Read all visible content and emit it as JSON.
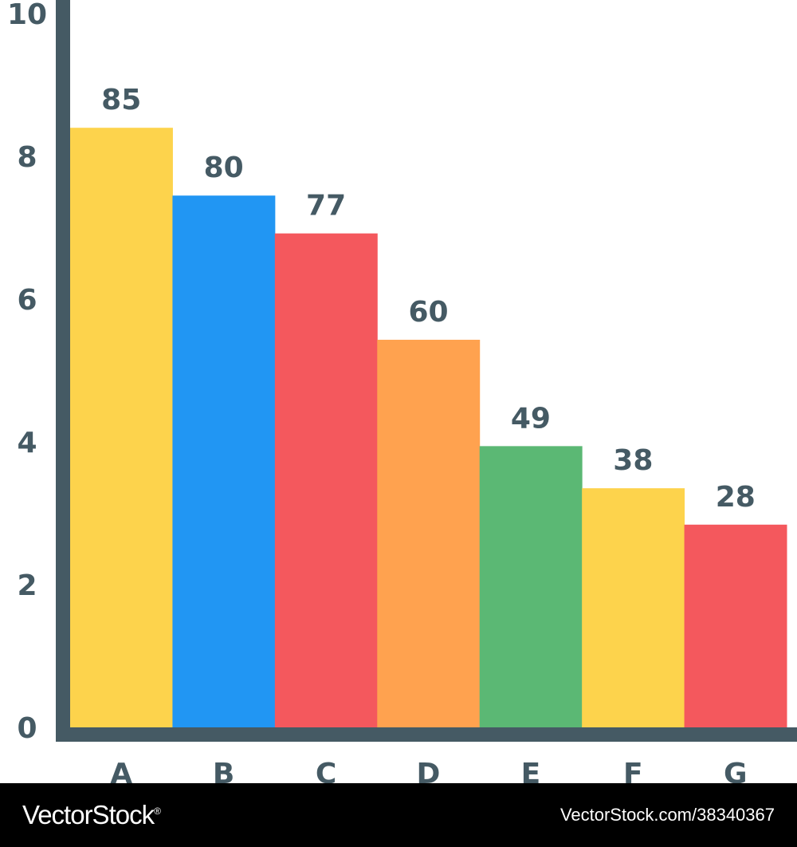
{
  "chart_data": {
    "type": "bar",
    "categories": [
      "A",
      "B",
      "C",
      "D",
      "E",
      "F",
      "G"
    ],
    "values": [
      85,
      80,
      77,
      60,
      49,
      38,
      28
    ],
    "bar_heights_axis_units": [
      8.4,
      7.45,
      6.92,
      5.43,
      3.94,
      3.35,
      2.84
    ],
    "data_labels": [
      "85",
      "80",
      "77",
      "60",
      "49",
      "38",
      "28"
    ],
    "bar_colors": [
      "#fdd34c",
      "#2196f3",
      "#f4585d",
      "#ffa24f",
      "#5bb874",
      "#fdd34c",
      "#f4585d"
    ],
    "y_ticks": [
      "0",
      "2",
      "4",
      "6",
      "8",
      "10"
    ],
    "y_tick_values": [
      0,
      2,
      4,
      6,
      8,
      10
    ],
    "ylim": [
      0,
      10
    ],
    "title": "",
    "xlabel": "",
    "ylabel": "",
    "grid": false,
    "legend": "none"
  },
  "colors": {
    "axis": "#455a64",
    "text": "#455a64",
    "watermark_bg": "#000000",
    "watermark_text": "#ffffff"
  },
  "watermark": {
    "brand": "VectorStock",
    "brand_mark": "®",
    "url": "VectorStock.com/38340367"
  }
}
